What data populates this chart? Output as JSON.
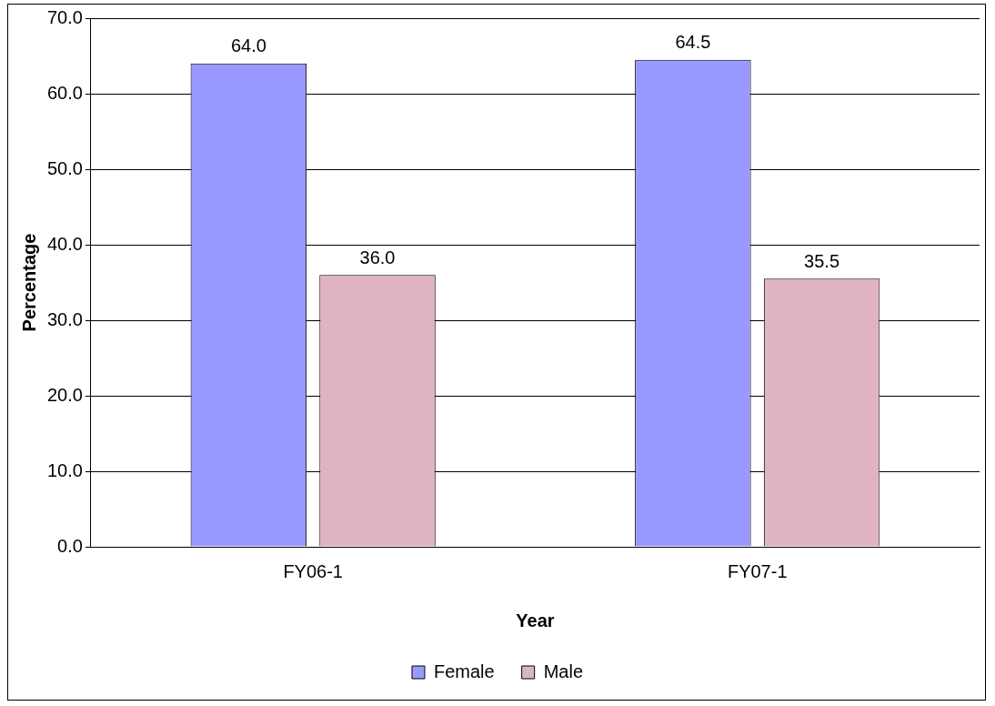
{
  "chart_data": {
    "type": "bar",
    "xlabel": "Year",
    "ylabel": "Percentage",
    "categories": [
      "FY06-1",
      "FY07-1"
    ],
    "series": [
      {
        "name": "Female",
        "color": "#9999ff",
        "values": [
          64.0,
          64.5
        ],
        "value_labels": [
          "64.0",
          "64.5"
        ]
      },
      {
        "name": "Male",
        "color": "#e0b3c2",
        "values": [
          36.0,
          35.5
        ],
        "value_labels": [
          "36.0",
          "35.5"
        ]
      }
    ],
    "ylim": [
      0,
      70
    ],
    "yticks": [
      {
        "value": 0,
        "label": "0.0"
      },
      {
        "value": 10,
        "label": "10.0"
      },
      {
        "value": 20,
        "label": "20.0"
      },
      {
        "value": 30,
        "label": "30.0"
      },
      {
        "value": 40,
        "label": "40.0"
      },
      {
        "value": 50,
        "label": "50.0"
      },
      {
        "value": 60,
        "label": "60.0"
      },
      {
        "value": 70,
        "label": "70.0"
      }
    ],
    "grid": "y",
    "legend": "bottom"
  }
}
